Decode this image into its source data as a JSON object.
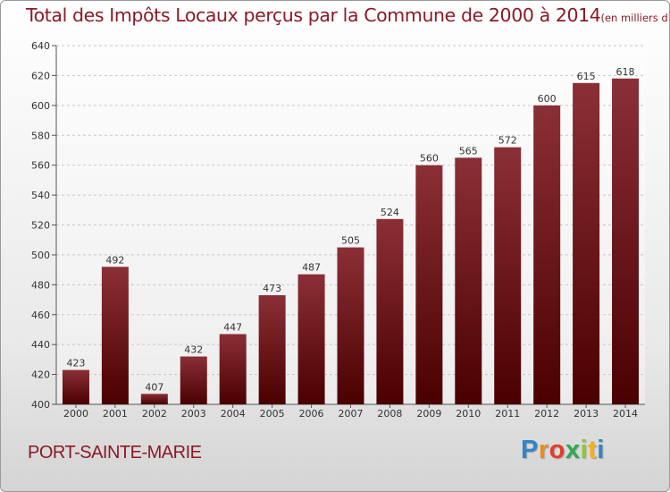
{
  "title": "Total des Impôts Locaux perçus par la Commune de 2000 à 2014",
  "unit_note": "(en milliers d'€)",
  "commune": "PORT-SAINTE-MARIE",
  "logo": {
    "text": "Proxiti",
    "colors": [
      "#2f86c8",
      "#f08a1a",
      "#e63a2e",
      "#2fa84f",
      "#8cc63e",
      "#f6b21a",
      "#2f86c8"
    ]
  },
  "colors": {
    "bar_top": "#8b2f36",
    "bar_bottom": "#4a0000",
    "accent": "#8a1a26"
  },
  "chart_data": {
    "type": "bar",
    "categories": [
      "2000",
      "2001",
      "2002",
      "2003",
      "2004",
      "2005",
      "2006",
      "2007",
      "2008",
      "2009",
      "2010",
      "2011",
      "2012",
      "2013",
      "2014"
    ],
    "values": [
      423,
      492,
      407,
      432,
      447,
      473,
      487,
      505,
      524,
      560,
      565,
      572,
      600,
      615,
      618
    ],
    "ylim": [
      400,
      640
    ],
    "yticks": [
      400,
      420,
      440,
      460,
      480,
      500,
      520,
      540,
      560,
      580,
      600,
      620,
      640
    ],
    "grid": true,
    "data_labels": true
  }
}
